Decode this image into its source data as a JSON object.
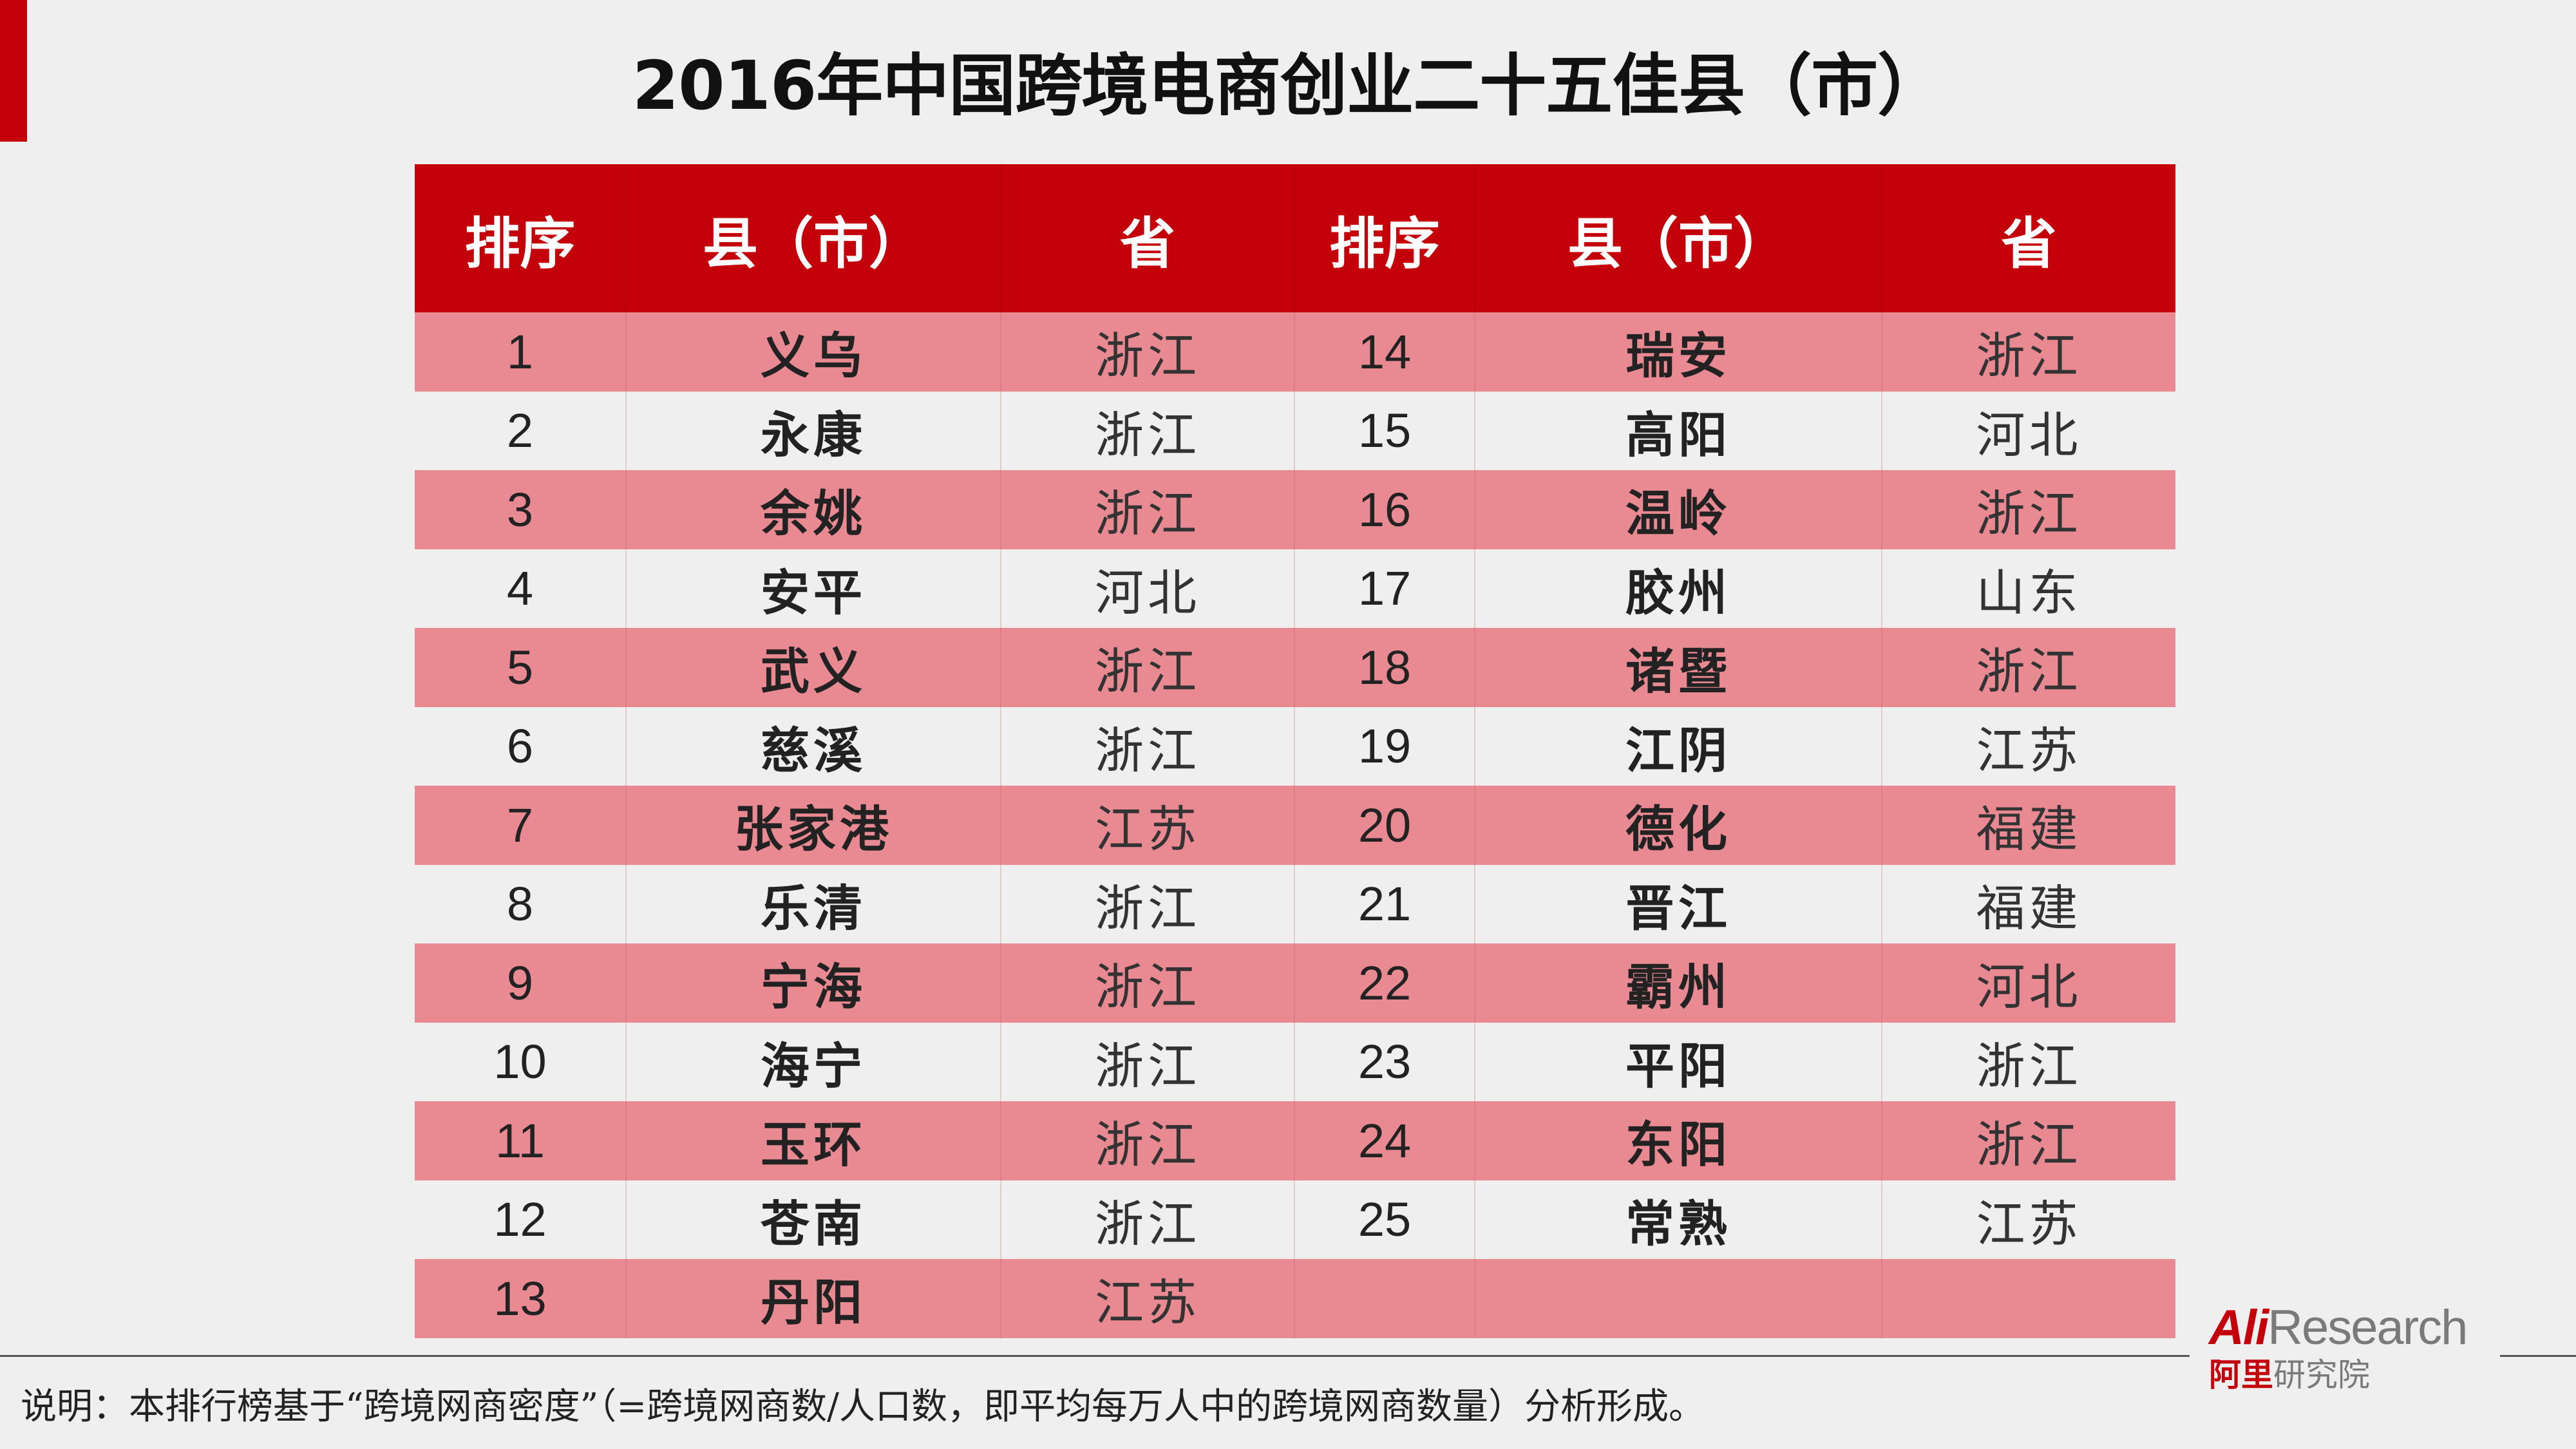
{
  "title": "2016年中国跨境电商创业二十五佳县（市）",
  "colors": {
    "header_red": "#c4000b",
    "row_pink": "#e98a92",
    "background": "#efefef"
  },
  "table": {
    "headers": [
      "排序",
      "县（市）",
      "省",
      "排序",
      "县（市）",
      "省"
    ],
    "rows": [
      {
        "left": {
          "rank": "1",
          "county": "义乌",
          "province": "浙江"
        },
        "right": {
          "rank": "14",
          "county": "瑞安",
          "province": "浙江"
        }
      },
      {
        "left": {
          "rank": "2",
          "county": "永康",
          "province": "浙江"
        },
        "right": {
          "rank": "15",
          "county": "高阳",
          "province": "河北"
        }
      },
      {
        "left": {
          "rank": "3",
          "county": "余姚",
          "province": "浙江"
        },
        "right": {
          "rank": "16",
          "county": "温岭",
          "province": "浙江"
        }
      },
      {
        "left": {
          "rank": "4",
          "county": "安平",
          "province": "河北"
        },
        "right": {
          "rank": "17",
          "county": "胶州",
          "province": "山东"
        }
      },
      {
        "left": {
          "rank": "5",
          "county": "武义",
          "province": "浙江"
        },
        "right": {
          "rank": "18",
          "county": "诸暨",
          "province": "浙江"
        }
      },
      {
        "left": {
          "rank": "6",
          "county": "慈溪",
          "province": "浙江"
        },
        "right": {
          "rank": "19",
          "county": "江阴",
          "province": "江苏"
        }
      },
      {
        "left": {
          "rank": "7",
          "county": "张家港",
          "province": "江苏"
        },
        "right": {
          "rank": "20",
          "county": "德化",
          "province": "福建"
        }
      },
      {
        "left": {
          "rank": "8",
          "county": "乐清",
          "province": "浙江"
        },
        "right": {
          "rank": "21",
          "county": "晋江",
          "province": "福建"
        }
      },
      {
        "left": {
          "rank": "9",
          "county": "宁海",
          "province": "浙江"
        },
        "right": {
          "rank": "22",
          "county": "霸州",
          "province": "河北"
        }
      },
      {
        "left": {
          "rank": "10",
          "county": "海宁",
          "province": "浙江"
        },
        "right": {
          "rank": "23",
          "county": "平阳",
          "province": "浙江"
        }
      },
      {
        "left": {
          "rank": "11",
          "county": "玉环",
          "province": "浙江"
        },
        "right": {
          "rank": "24",
          "county": "东阳",
          "province": "浙江"
        }
      },
      {
        "left": {
          "rank": "12",
          "county": "苍南",
          "province": "浙江"
        },
        "right": {
          "rank": "25",
          "county": "常熟",
          "province": "江苏"
        }
      },
      {
        "left": {
          "rank": "13",
          "county": "丹阳",
          "province": "江苏"
        },
        "right": {
          "rank": "",
          "county": "",
          "province": ""
        }
      }
    ]
  },
  "logo": {
    "ali": "Ali",
    "research": "Research",
    "cn_red": "阿里",
    "cn_grey": "研究院"
  },
  "footnote": "说明：本排行榜基于“跨境网商密度”（=跨境网商数/人口数，即平均每万人中的跨境网商数量）分析形成。"
}
